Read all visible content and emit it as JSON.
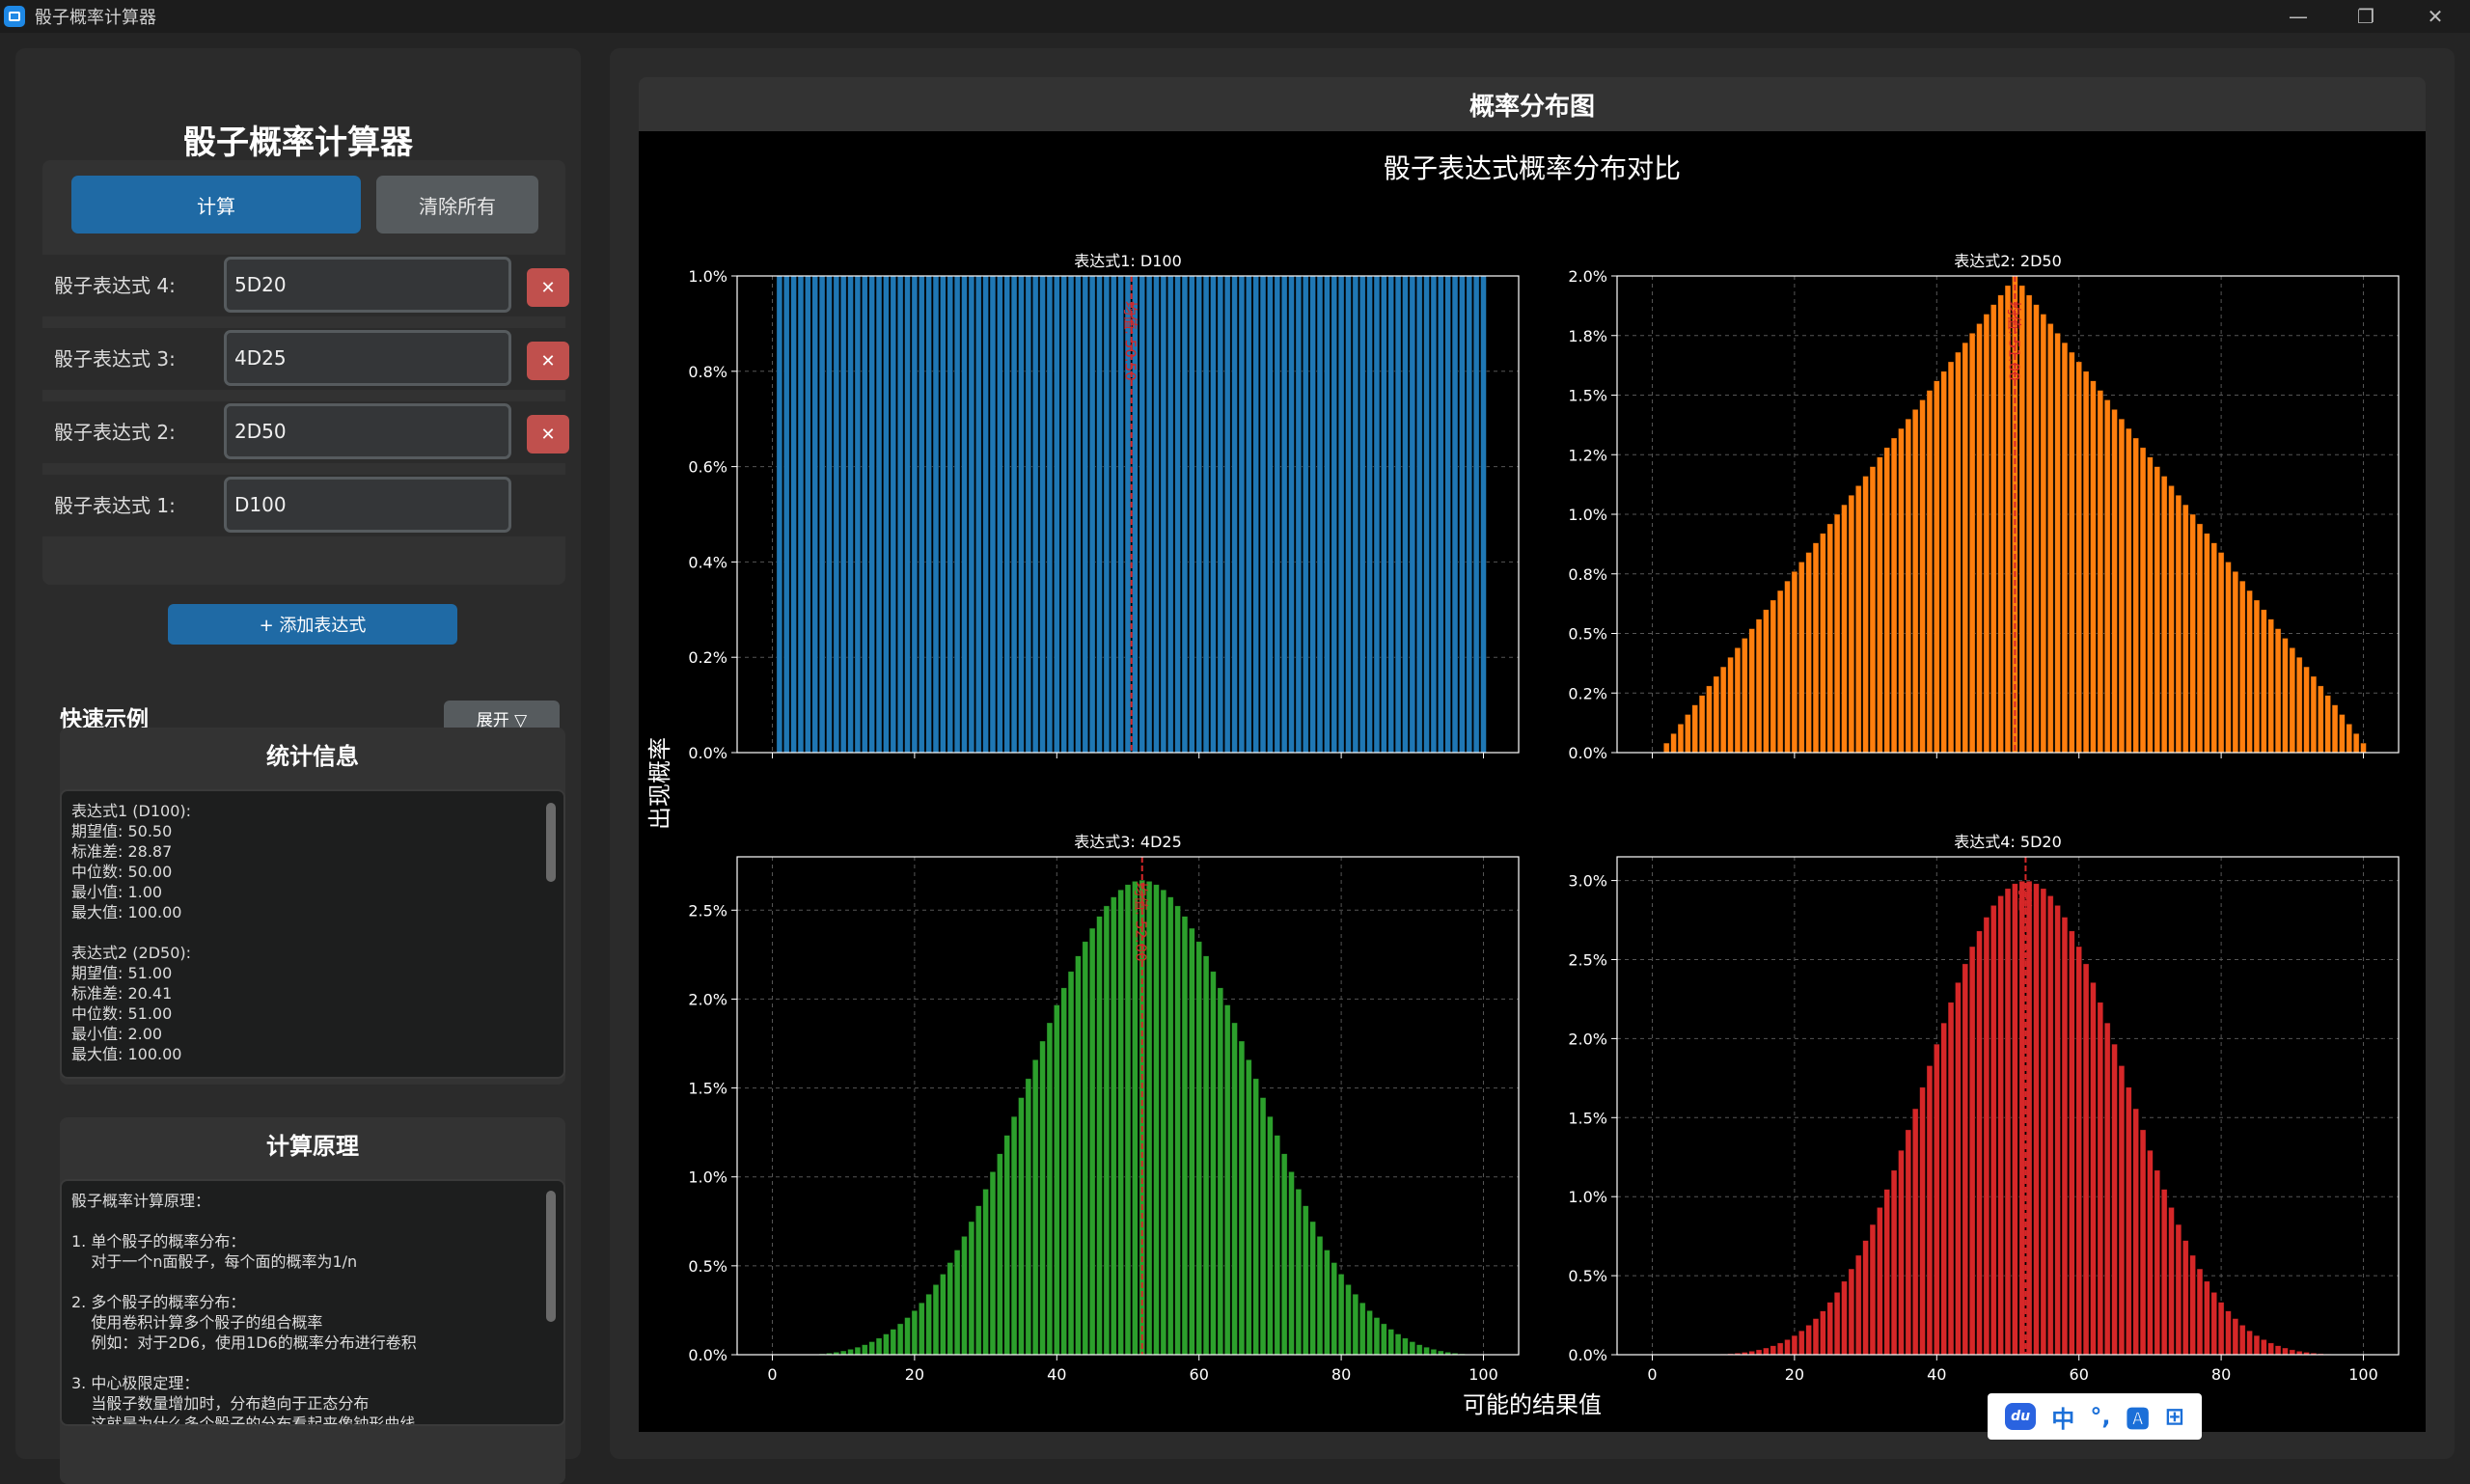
{
  "window": {
    "title": "骰子概率计算器",
    "minimize": "—",
    "maximize": "❐",
    "close": "✕"
  },
  "app_title": "骰子概率计算器",
  "buttons": {
    "calculate": "计算",
    "clear_all": "清除所有",
    "add_expression": "+ 添加表达式",
    "expand": "展开 ▽",
    "delete": "✕"
  },
  "expressions": [
    {
      "label": "骰子表达式 4:",
      "value": "5D20",
      "deletable": true
    },
    {
      "label": "骰子表达式 3:",
      "value": "4D25",
      "deletable": true
    },
    {
      "label": "骰子表达式 2:",
      "value": "2D50",
      "deletable": true
    },
    {
      "label": "骰子表达式 1:",
      "value": "D100",
      "deletable": false
    }
  ],
  "examples_title": "快速示例",
  "stats": {
    "title": "统计信息",
    "text": "表达式1 (D100):\n期望值: 50.50\n标准差: 28.87\n中位数: 50.00\n最小值: 1.00\n最大值: 100.00\n\n表达式2 (2D50):\n期望值: 51.00\n标准差: 20.41\n中位数: 51.00\n最小值: 2.00\n最大值: 100.00"
  },
  "principle": {
    "title": "计算原理",
    "text": "骰子概率计算原理：\n\n1. 单个骰子的概率分布：\n    对于一个n面骰子，每个面的概率为1/n\n\n2. 多个骰子的概率分布：\n    使用卷积计算多个骰子的组合概率\n    例如：对于2D6，使用1D6的概率分布进行卷积\n\n3. 中心极限定理：\n    当骰子数量增加时，分布趋向于正态分布\n    这就是为什么多个骰子的分布看起来像钟形曲线"
  },
  "chart_panel_title": "概率分布图",
  "ime": {
    "zh": "中",
    "punct": "°,",
    "du": "du"
  },
  "chart_data": {
    "type": "bar",
    "title": "骰子表达式概率分布对比",
    "xlabel": "可能的结果值",
    "ylabel": "出现概率",
    "colors": {
      "bg": "#000000",
      "axes": "#ffffff",
      "grid": "#555555",
      "mean_line": "#d62728"
    },
    "mean_label": "均值",
    "x_ticks": [
      0,
      20,
      40,
      60,
      80,
      100
    ],
    "panels": [
      {
        "title": "表达式1: D100",
        "dice": 1,
        "faces": 100,
        "color": "#1f77b4",
        "mean": 50.5,
        "ylim": [
          0,
          1.0
        ],
        "y_ticks": [
          "0.0%",
          "0.2%",
          "0.4%",
          "0.6%",
          "0.8%",
          "1.0%"
        ],
        "y_tick_values": [
          0,
          0.2,
          0.4,
          0.6,
          0.8,
          1.0
        ],
        "show_x_ticks": false
      },
      {
        "title": "表达式2: 2D50",
        "dice": 2,
        "faces": 50,
        "color": "#ff7f0e",
        "mean": 51,
        "ylim": [
          0,
          2.0
        ],
        "y_ticks": [
          "0.0%",
          "0.2%",
          "0.5%",
          "0.8%",
          "1.0%",
          "1.2%",
          "1.5%",
          "1.8%",
          "2.0%"
        ],
        "y_tick_values": [
          0,
          0.25,
          0.5,
          0.75,
          1.0,
          1.25,
          1.5,
          1.75,
          2.0
        ],
        "show_x_ticks": false
      },
      {
        "title": "表达式3: 4D25",
        "dice": 4,
        "faces": 25,
        "color": "#2ca02c",
        "mean": 52,
        "ylim": [
          0,
          2.8
        ],
        "y_ticks": [
          "0.0%",
          "0.5%",
          "1.0%",
          "1.5%",
          "2.0%",
          "2.5%"
        ],
        "y_tick_values": [
          0,
          0.5,
          1.0,
          1.5,
          2.0,
          2.5
        ],
        "show_x_ticks": true
      },
      {
        "title": "表达式4: 5D20",
        "dice": 5,
        "faces": 20,
        "color": "#d62728",
        "mean": 52.5,
        "ylim": [
          0,
          3.15
        ],
        "y_ticks": [
          "0.0%",
          "0.5%",
          "1.0%",
          "1.5%",
          "2.0%",
          "2.5%",
          "3.0%"
        ],
        "y_tick_values": [
          0,
          0.5,
          1.0,
          1.5,
          2.0,
          2.5,
          3.0
        ],
        "show_x_ticks": true
      }
    ]
  }
}
